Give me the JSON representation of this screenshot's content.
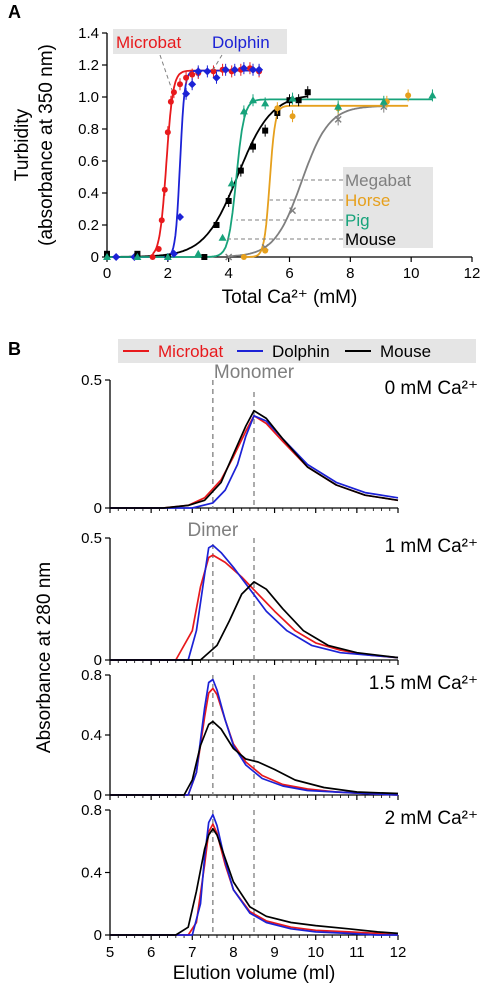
{
  "panel_labels": {
    "a": "A",
    "b": "B"
  },
  "colors": {
    "microbat": "#e8191c",
    "dolphin": "#1c22d6",
    "mouse": "#000000",
    "megabat": "#7f7f7f",
    "horse": "#e6a01d",
    "pig": "#17a37b",
    "guide": "#7f7f7f",
    "legend_bg": "#e5e5e5"
  },
  "chart_data": [
    {
      "id": "panel-a",
      "type": "scatter",
      "title": "",
      "xlabel": "Total Ca²⁺ (mM)",
      "ylabel": "Turbidity (absorbance at 350 nm)",
      "ylabel_lines": [
        "Turbidity",
        "(absorbance at 350 nm)"
      ],
      "xlim": [
        0,
        12
      ],
      "ylim": [
        0,
        1.4
      ],
      "xticks": [
        "0",
        "2",
        "4",
        "6",
        "8",
        "10",
        "12"
      ],
      "yticks": [
        "0",
        "0.2",
        "0.4",
        "0.6",
        "0.8",
        "1.0",
        "1.2",
        "1.4"
      ],
      "legend_top": [
        "Microbat",
        "Dolphin"
      ],
      "legend_right": [
        "Megabat",
        "Horse",
        "Pig",
        "Mouse"
      ],
      "series": [
        {
          "name": "Microbat",
          "key": "microbat",
          "marker": "circle",
          "x": [
            1.5,
            1.7,
            1.8,
            1.9,
            2.0,
            2.1,
            2.2,
            2.4,
            2.6,
            2.8,
            3.0,
            3.5,
            3.8,
            4.1,
            4.4,
            4.7,
            5.0
          ],
          "y": [
            0.0,
            0.05,
            0.23,
            0.42,
            0.78,
            0.97,
            1.03,
            1.08,
            1.12,
            1.14,
            1.15,
            1.16,
            1.17,
            1.16,
            1.17,
            1.18,
            1.16
          ],
          "fit": {
            "top": 1.165,
            "mid": 1.95,
            "slope": 0.11
          }
        },
        {
          "name": "Dolphin",
          "key": "dolphin",
          "marker": "diamond",
          "x": [
            0.3,
            0.9,
            2.0,
            2.2,
            2.4,
            2.6,
            2.8,
            3.0,
            3.3,
            3.6,
            3.9,
            4.2,
            4.5,
            4.8,
            5.0
          ],
          "y": [
            0.0,
            0.0,
            0.0,
            0.02,
            0.25,
            1.02,
            1.08,
            1.16,
            1.16,
            1.12,
            1.17,
            1.17,
            1.18,
            1.17,
            1.17
          ],
          "fit": {
            "top": 1.165,
            "mid": 2.4,
            "slope": 0.075
          }
        },
        {
          "name": "Mouse",
          "key": "mouse",
          "marker": "square",
          "x": [
            0.0,
            1.0,
            2.0,
            3.2,
            3.6,
            4.0,
            4.4,
            4.8,
            5.2,
            5.6,
            6.0,
            6.3,
            6.6
          ],
          "y": [
            0.02,
            0.02,
            0.0,
            0.0,
            0.2,
            0.35,
            0.54,
            0.69,
            0.79,
            0.9,
            0.98,
            0.98,
            1.03
          ],
          "fit": {
            "top": 1.02,
            "mid": 4.3,
            "slope": 0.55
          }
        },
        {
          "name": "Megabat",
          "key": "megabat",
          "marker": "x",
          "x": [
            4.0,
            5.2,
            6.1,
            7.6,
            9.1
          ],
          "y": [
            0.0,
            0.06,
            0.29,
            0.86,
            0.94
          ],
          "fit": {
            "top": 0.945,
            "mid": 6.4,
            "slope": 0.45
          }
        },
        {
          "name": "Horse",
          "key": "horse",
          "marker": "circle",
          "x": [
            4.5,
            5.2,
            5.6,
            6.1,
            7.6,
            9.2,
            9.9
          ],
          "y": [
            0.0,
            0.04,
            0.93,
            0.88,
            0.93,
            0.97,
            1.01
          ],
          "fit": {
            "top": 0.945,
            "mid": 5.35,
            "slope": 0.09
          }
        },
        {
          "name": "Pig",
          "key": "pig",
          "marker": "triangle",
          "x": [
            0.0,
            1.0,
            2.0,
            3.0,
            3.8,
            4.1,
            4.5,
            4.8,
            5.2,
            6.1,
            7.6,
            9.1,
            10.7
          ],
          "y": [
            0.0,
            0.0,
            0.0,
            0.02,
            0.12,
            0.46,
            0.91,
            0.98,
            0.96,
            0.99,
            0.94,
            0.97,
            1.01
          ],
          "fit": {
            "top": 0.985,
            "mid": 4.25,
            "slope": 0.13
          }
        }
      ]
    },
    {
      "id": "panel-b",
      "type": "line",
      "title": "",
      "xlabel": "Elution volume (ml)",
      "ylabel": "Absorbance at 280 nm",
      "xlim": [
        5,
        12
      ],
      "xticks": [
        "5",
        "6",
        "7",
        "8",
        "9",
        "10",
        "11",
        "12"
      ],
      "legend": [
        "Microbat",
        "Dolphin",
        "Mouse"
      ],
      "guides": {
        "dimer_x": 7.5,
        "monomer_x": 8.5
      },
      "subplots": [
        {
          "label": "0 mM Ca²⁺",
          "annotation": "Monomer",
          "ylim": [
            0,
            0.5
          ],
          "yticks": [
            "0",
            "0.5"
          ],
          "series": [
            {
              "name": "Microbat",
              "key": "microbat",
              "x": [
                5.0,
                6.3,
                6.9,
                7.3,
                7.7,
                8.0,
                8.3,
                8.5,
                8.8,
                9.2,
                9.8,
                10.5,
                11.2,
                12.0
              ],
              "y": [
                0.0,
                0.0,
                0.01,
                0.04,
                0.11,
                0.2,
                0.3,
                0.36,
                0.33,
                0.26,
                0.16,
                0.09,
                0.05,
                0.03
              ]
            },
            {
              "name": "Dolphin",
              "key": "dolphin",
              "x": [
                5.0,
                6.3,
                7.0,
                7.5,
                7.8,
                8.1,
                8.3,
                8.5,
                8.8,
                9.2,
                9.8,
                10.5,
                11.2,
                12.0
              ],
              "y": [
                0.0,
                0.0,
                0.0,
                0.02,
                0.07,
                0.17,
                0.28,
                0.36,
                0.34,
                0.27,
                0.17,
                0.1,
                0.06,
                0.04
              ]
            },
            {
              "name": "Mouse",
              "key": "mouse",
              "x": [
                5.0,
                6.3,
                6.9,
                7.3,
                7.7,
                8.0,
                8.3,
                8.5,
                8.8,
                9.2,
                9.8,
                10.5,
                11.2,
                12.0
              ],
              "y": [
                0.0,
                0.0,
                0.01,
                0.03,
                0.1,
                0.21,
                0.32,
                0.38,
                0.35,
                0.27,
                0.16,
                0.09,
                0.05,
                0.03
              ]
            }
          ]
        },
        {
          "label": "1 mM Ca²⁺",
          "annotation": "Dimer",
          "ylim": [
            0,
            0.5
          ],
          "yticks": [
            "0",
            "0.5"
          ],
          "series": [
            {
              "name": "Microbat",
              "key": "microbat",
              "x": [
                5.0,
                6.6,
                7.0,
                7.2,
                7.4,
                7.5,
                7.8,
                8.2,
                8.6,
                9.0,
                9.5,
                10.0,
                10.6,
                11.3,
                12.0
              ],
              "y": [
                0.0,
                0.0,
                0.12,
                0.3,
                0.42,
                0.43,
                0.4,
                0.34,
                0.27,
                0.2,
                0.12,
                0.07,
                0.04,
                0.02,
                0.01
              ]
            },
            {
              "name": "Dolphin",
              "key": "dolphin",
              "x": [
                5.0,
                6.9,
                7.1,
                7.3,
                7.4,
                7.5,
                7.7,
                8.0,
                8.4,
                8.8,
                9.3,
                9.9,
                10.6,
                11.3,
                12.0
              ],
              "y": [
                0.0,
                0.0,
                0.12,
                0.35,
                0.46,
                0.47,
                0.44,
                0.38,
                0.29,
                0.2,
                0.12,
                0.06,
                0.03,
                0.02,
                0.01
              ]
            },
            {
              "name": "Mouse",
              "key": "mouse",
              "x": [
                5.0,
                7.2,
                7.6,
                7.9,
                8.2,
                8.5,
                8.8,
                9.2,
                9.7,
                10.3,
                11.0,
                12.0
              ],
              "y": [
                0.0,
                0.0,
                0.06,
                0.16,
                0.27,
                0.32,
                0.29,
                0.21,
                0.12,
                0.06,
                0.03,
                0.01
              ]
            }
          ]
        },
        {
          "label": "1.5 mM Ca²⁺",
          "annotation": "",
          "ylim": [
            0,
            0.8
          ],
          "yticks": [
            "0",
            "0.4",
            "0.8"
          ],
          "series": [
            {
              "name": "Microbat",
              "key": "microbat",
              "x": [
                5.0,
                6.9,
                7.1,
                7.3,
                7.4,
                7.5,
                7.6,
                7.8,
                8.0,
                8.3,
                8.7,
                9.2,
                9.8,
                10.5,
                11.2,
                12.0
              ],
              "y": [
                0.0,
                0.0,
                0.15,
                0.52,
                0.68,
                0.71,
                0.67,
                0.5,
                0.34,
                0.22,
                0.13,
                0.07,
                0.04,
                0.02,
                0.01,
                0.0
              ]
            },
            {
              "name": "Dolphin",
              "key": "dolphin",
              "x": [
                5.0,
                6.9,
                7.1,
                7.3,
                7.4,
                7.5,
                7.6,
                7.8,
                8.0,
                8.3,
                8.7,
                9.2,
                9.8,
                10.5,
                11.2,
                12.0
              ],
              "y": [
                0.0,
                0.0,
                0.15,
                0.58,
                0.75,
                0.77,
                0.7,
                0.5,
                0.33,
                0.2,
                0.11,
                0.06,
                0.03,
                0.02,
                0.01,
                0.0
              ]
            },
            {
              "name": "Mouse",
              "key": "mouse",
              "x": [
                5.0,
                6.8,
                7.0,
                7.2,
                7.4,
                7.5,
                7.7,
                8.0,
                8.3,
                8.6,
                9.0,
                9.5,
                10.2,
                11.0,
                12.0
              ],
              "y": [
                0.0,
                0.0,
                0.1,
                0.33,
                0.47,
                0.49,
                0.44,
                0.31,
                0.24,
                0.22,
                0.17,
                0.1,
                0.05,
                0.02,
                0.01
              ]
            }
          ]
        },
        {
          "label": "2 mM Ca²⁺",
          "annotation": "",
          "ylim": [
            0,
            0.8
          ],
          "yticks": [
            "0",
            "0.4",
            "0.8"
          ],
          "series": [
            {
              "name": "Microbat",
              "key": "microbat",
              "x": [
                5.0,
                6.9,
                7.1,
                7.3,
                7.4,
                7.5,
                7.6,
                7.8,
                8.0,
                8.4,
                8.8,
                9.4,
                10.0,
                10.8,
                11.5,
                12.0
              ],
              "y": [
                0.0,
                0.0,
                0.08,
                0.45,
                0.66,
                0.71,
                0.65,
                0.45,
                0.29,
                0.15,
                0.09,
                0.05,
                0.03,
                0.02,
                0.01,
                0.0
              ]
            },
            {
              "name": "Dolphin",
              "key": "dolphin",
              "x": [
                5.0,
                7.0,
                7.2,
                7.3,
                7.4,
                7.5,
                7.6,
                7.8,
                8.0,
                8.4,
                8.8,
                9.4,
                10.0,
                10.8,
                11.5,
                12.0
              ],
              "y": [
                0.0,
                0.0,
                0.2,
                0.5,
                0.72,
                0.77,
                0.7,
                0.47,
                0.29,
                0.14,
                0.08,
                0.04,
                0.02,
                0.01,
                0.0,
                0.0
              ]
            },
            {
              "name": "Mouse",
              "key": "mouse",
              "x": [
                5.0,
                6.6,
                6.9,
                7.1,
                7.3,
                7.4,
                7.5,
                7.6,
                7.8,
                8.0,
                8.4,
                8.8,
                9.4,
                10.0,
                10.8,
                11.5,
                12.0
              ],
              "y": [
                0.0,
                0.0,
                0.05,
                0.28,
                0.55,
                0.64,
                0.68,
                0.64,
                0.49,
                0.34,
                0.18,
                0.12,
                0.08,
                0.06,
                0.04,
                0.02,
                0.01
              ]
            }
          ]
        }
      ]
    }
  ]
}
